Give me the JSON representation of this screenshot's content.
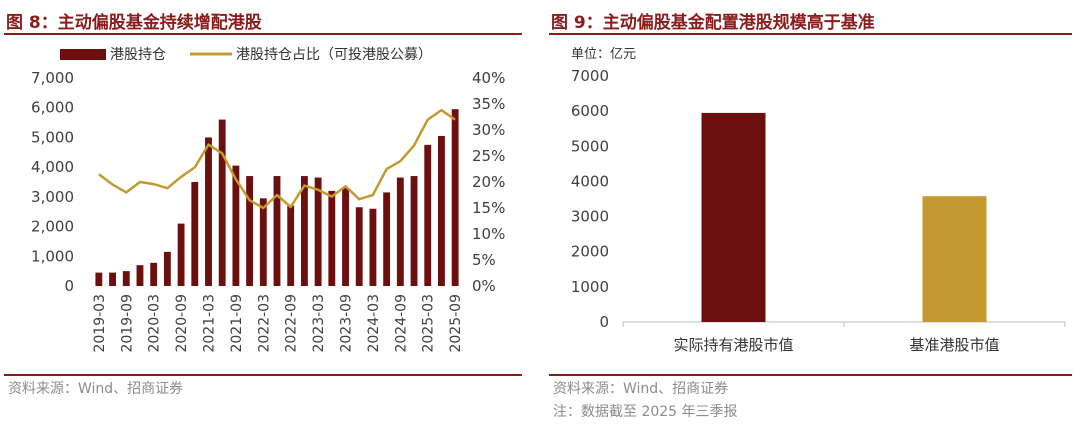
{
  "left": {
    "title": "图 8：主动偏股基金持续增配港股",
    "source": "资料来源：Wind、招商证券",
    "chart_data": {
      "type": "bar",
      "title": "",
      "y_left_ticks": [
        "0",
        "1,000",
        "2,000",
        "3,000",
        "4,000",
        "5,000",
        "6,000",
        "7,000"
      ],
      "y_right_ticks": [
        "0%",
        "5%",
        "10%",
        "15%",
        "20%",
        "25%",
        "30%",
        "35%",
        "40%"
      ],
      "ylim_left": [
        0,
        7000
      ],
      "ylim_right": [
        0,
        40
      ],
      "x_tick_labels": [
        "2019-03",
        "2019-09",
        "2020-03",
        "2020-09",
        "2021-03",
        "2021-09",
        "2022-03",
        "2022-09",
        "2023-03",
        "2023-09",
        "2024-03",
        "2024-09",
        "2025-03",
        "2025-09"
      ],
      "categories": [
        "2019-03",
        "2019-06",
        "2019-09",
        "2019-12",
        "2020-03",
        "2020-06",
        "2020-09",
        "2020-12",
        "2021-03",
        "2021-06",
        "2021-09",
        "2021-12",
        "2022-03",
        "2022-06",
        "2022-09",
        "2022-12",
        "2023-03",
        "2023-06",
        "2023-09",
        "2023-12",
        "2024-03",
        "2024-06",
        "2024-09",
        "2024-12",
        "2025-03",
        "2025-06",
        "2025-09"
      ],
      "series": [
        {
          "name": "港股持仓",
          "type": "bar",
          "axis": "left",
          "color": "#6b0f0f",
          "values": [
            450,
            450,
            500,
            700,
            780,
            1150,
            2100,
            3500,
            5000,
            5600,
            4050,
            3700,
            2950,
            3700,
            2700,
            3700,
            3650,
            3200,
            3300,
            2650,
            2600,
            3150,
            3650,
            3700,
            4750,
            5050,
            5950
          ]
        },
        {
          "name": "港股持仓占比（可投港股公募）",
          "type": "line",
          "axis": "right",
          "color": "#c49a30",
          "values": [
            21.5,
            19.5,
            18.0,
            20.0,
            19.6,
            18.8,
            21.0,
            22.8,
            27.2,
            25.5,
            20.5,
            16.5,
            15.0,
            17.5,
            15.2,
            19.3,
            18.5,
            17.2,
            19.2,
            16.7,
            17.5,
            22.5,
            24.0,
            27.0,
            32.0,
            33.8,
            32.0
          ]
        }
      ]
    }
  },
  "right": {
    "title": "图 9：主动偏股基金配置港股规模高于基准",
    "source": "资料来源：Wind、招商证券",
    "note": "注：数据截至 2025 年三季报",
    "chart_data": {
      "type": "bar",
      "title": "",
      "unit_label": "单位：亿元",
      "y_ticks": [
        "0",
        "1000",
        "2000",
        "3000",
        "4000",
        "5000",
        "6000",
        "7000"
      ],
      "ylim": [
        0,
        7000
      ],
      "categories": [
        "实际持有港股市值",
        "基准港股市值"
      ],
      "values": [
        5950,
        3580
      ],
      "colors": [
        "#6b0f0f",
        "#c49a30"
      ]
    }
  }
}
